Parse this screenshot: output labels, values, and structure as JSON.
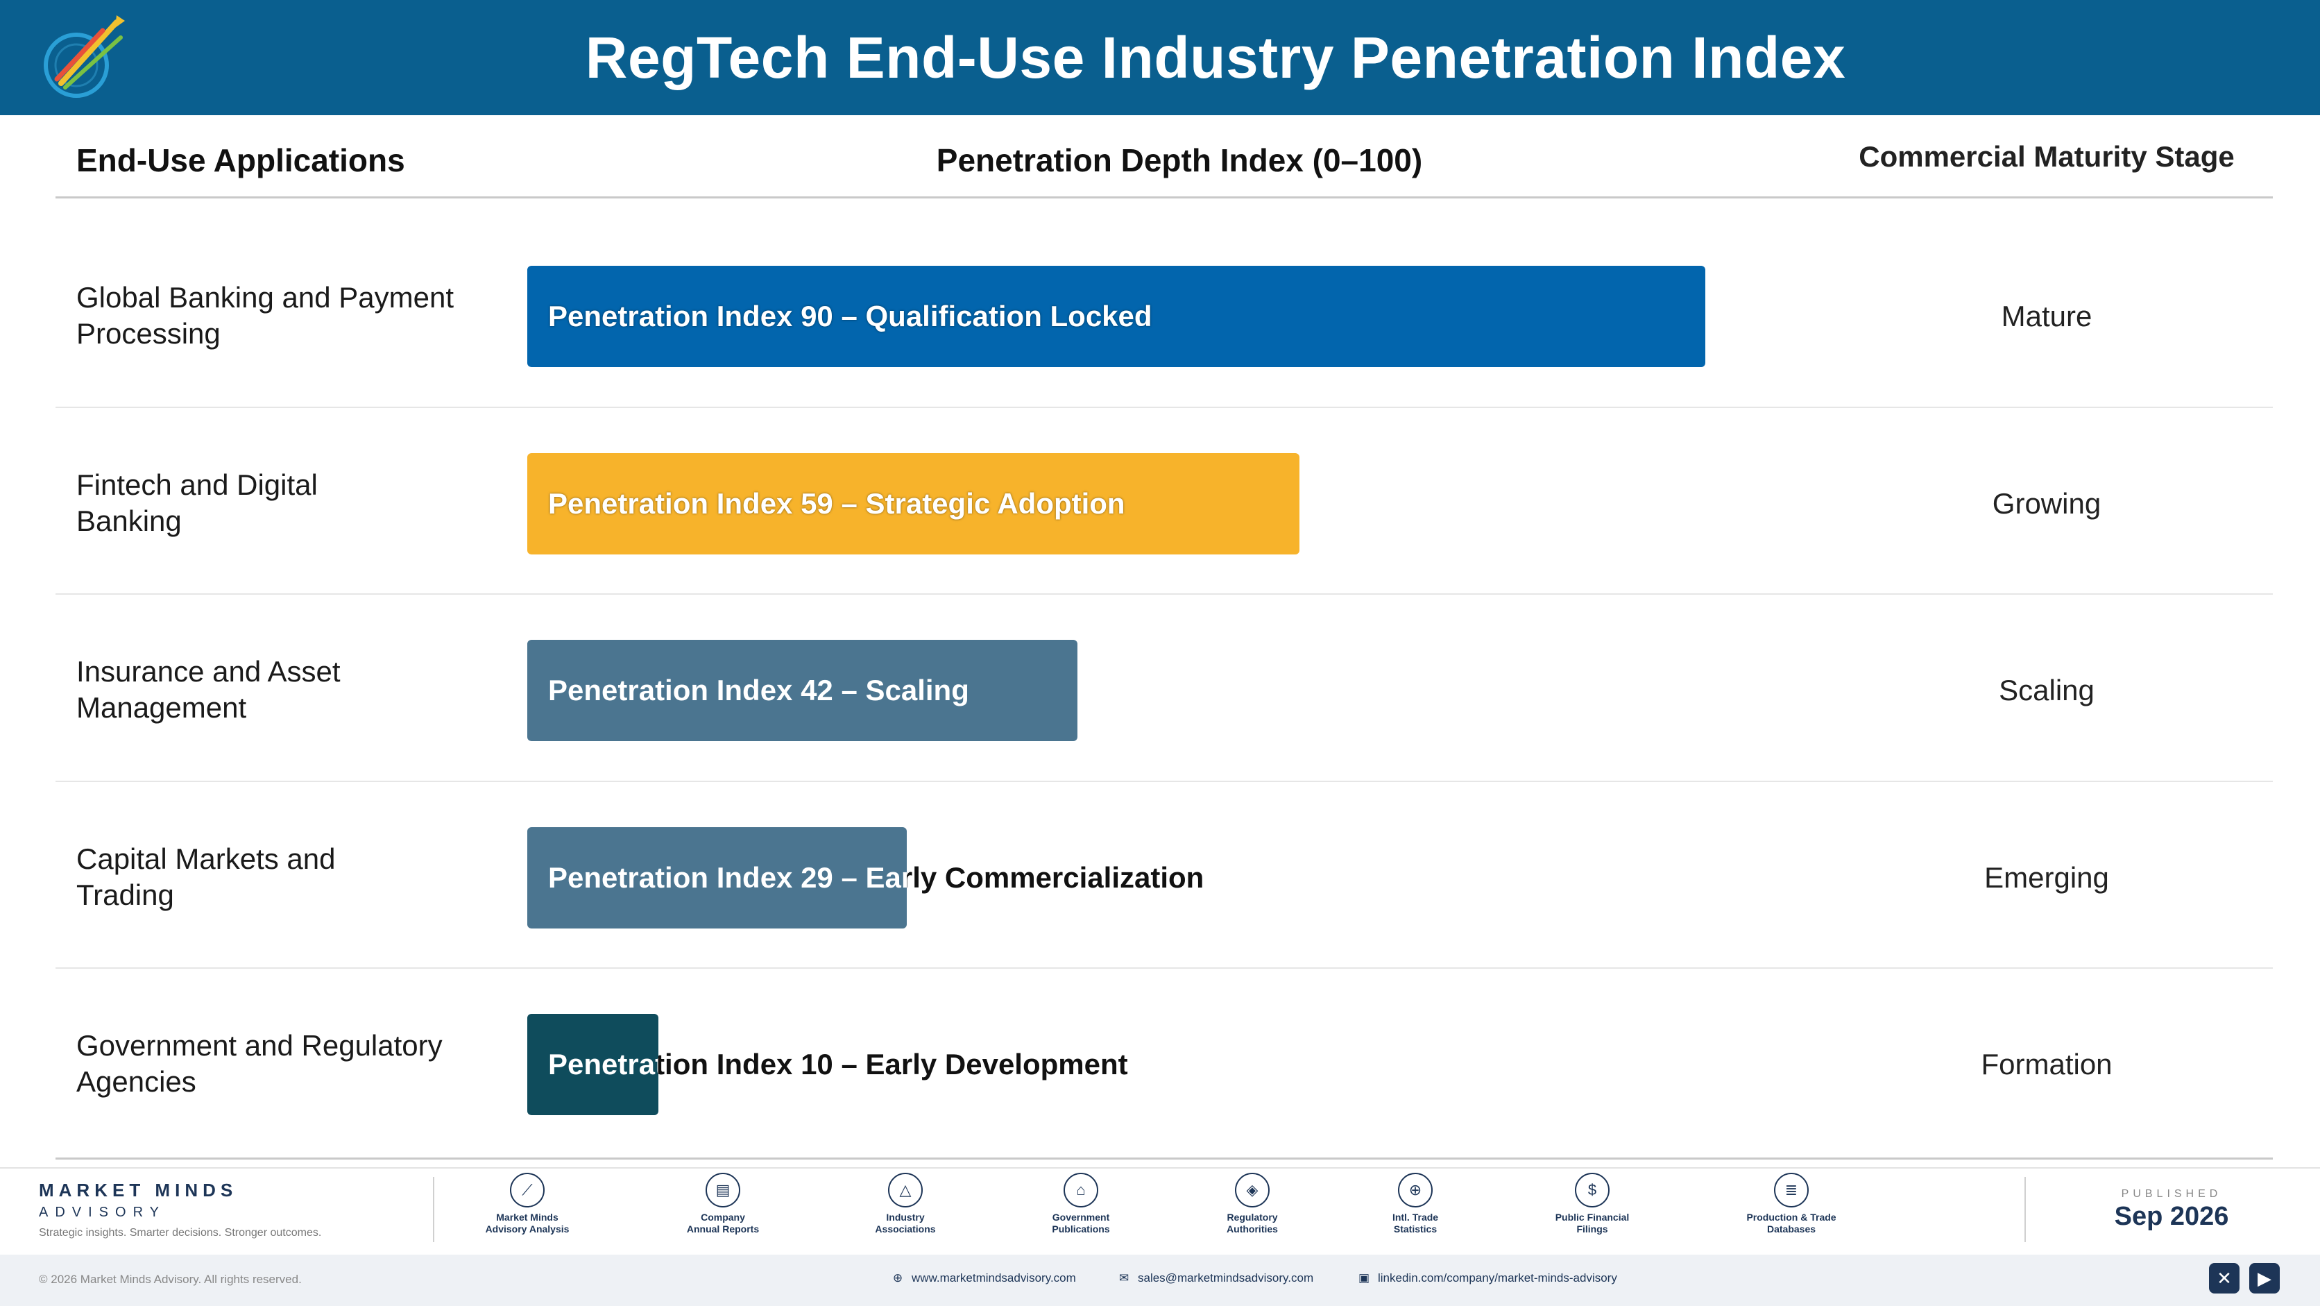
{
  "header": {
    "title": "RegTech End-Use Industry Penetration Index"
  },
  "columns": {
    "applications": "End-Use Applications",
    "depth": "Penetration Depth Index (0–100)",
    "maturity": "Commercial Maturity Stage"
  },
  "chart_data": {
    "type": "bar",
    "orientation": "horizontal",
    "xlim": [
      0,
      100
    ],
    "categories": [
      "Global Banking and Payment Processing",
      "Fintech and Digital Banking",
      "Insurance and Asset Management",
      "Capital Markets and Trading",
      "Government and Regulatory Agencies"
    ],
    "values": [
      90,
      59,
      42,
      29,
      10
    ],
    "bar_labels": [
      "Penetration Index 90 – Qualification Locked",
      "Penetration Index 59 – Strategic Adoption",
      "Penetration Index 42 – Scaling",
      "Penetration Index 29 – Early Commercialization",
      "Penetration Index 10 – Early Development"
    ],
    "maturity_stages": [
      "Mature",
      "Growing",
      "Scaling",
      "Emerging",
      "Formation"
    ],
    "colors": [
      "#0265ad",
      "#f7b32b",
      "#4b7590",
      "#4b7590",
      "#0f4c5c"
    ]
  },
  "rows_display": [
    {
      "label_line1": "Global Banking and Payment",
      "label_line2": "Processing"
    },
    {
      "label_line1": "Fintech and Digital",
      "label_line2": "Banking"
    },
    {
      "label_line1": "Insurance and Asset",
      "label_line2": "Management"
    },
    {
      "label_line1": "Capital Markets and",
      "label_line2": "Trading"
    },
    {
      "label_line1": "Government and Regulatory",
      "label_line2": "Agencies"
    }
  ],
  "footer": {
    "brand_name": "MARKET MINDS",
    "brand_sub": "ADVISORY",
    "tagline": "Strategic insights. Smarter decisions. Stronger outcomes.",
    "sources": [
      {
        "icon": "trend-icon",
        "glyph": "⟋",
        "label": "Market Minds\nAdvisory Analysis"
      },
      {
        "icon": "document-icon",
        "glyph": "▤",
        "label": "Company\nAnnual Reports"
      },
      {
        "icon": "network-icon",
        "glyph": "△",
        "label": "Industry\nAssociations"
      },
      {
        "icon": "government-building-icon",
        "glyph": "⌂",
        "label": "Government\nPublications"
      },
      {
        "icon": "shield-icon",
        "glyph": "◈",
        "label": "Regulatory\nAuthorities"
      },
      {
        "icon": "globe-icon",
        "glyph": "⊕",
        "label": "Intl. Trade\nStatistics"
      },
      {
        "icon": "coin-icon",
        "glyph": "$",
        "label": "Public Financial\nFilings"
      },
      {
        "icon": "database-icon",
        "glyph": "≣",
        "label": "Production & Trade\nDatabases"
      }
    ],
    "published_label": "PUBLISHED",
    "published_date": "Sep 2026",
    "copyright": "© 2026 Market Minds Advisory. All rights reserved.",
    "website": "www.marketmindsadvisory.com",
    "email": "sales@marketmindsadvisory.com",
    "linkedin": "linkedin.com/company/market-minds-advisory"
  }
}
